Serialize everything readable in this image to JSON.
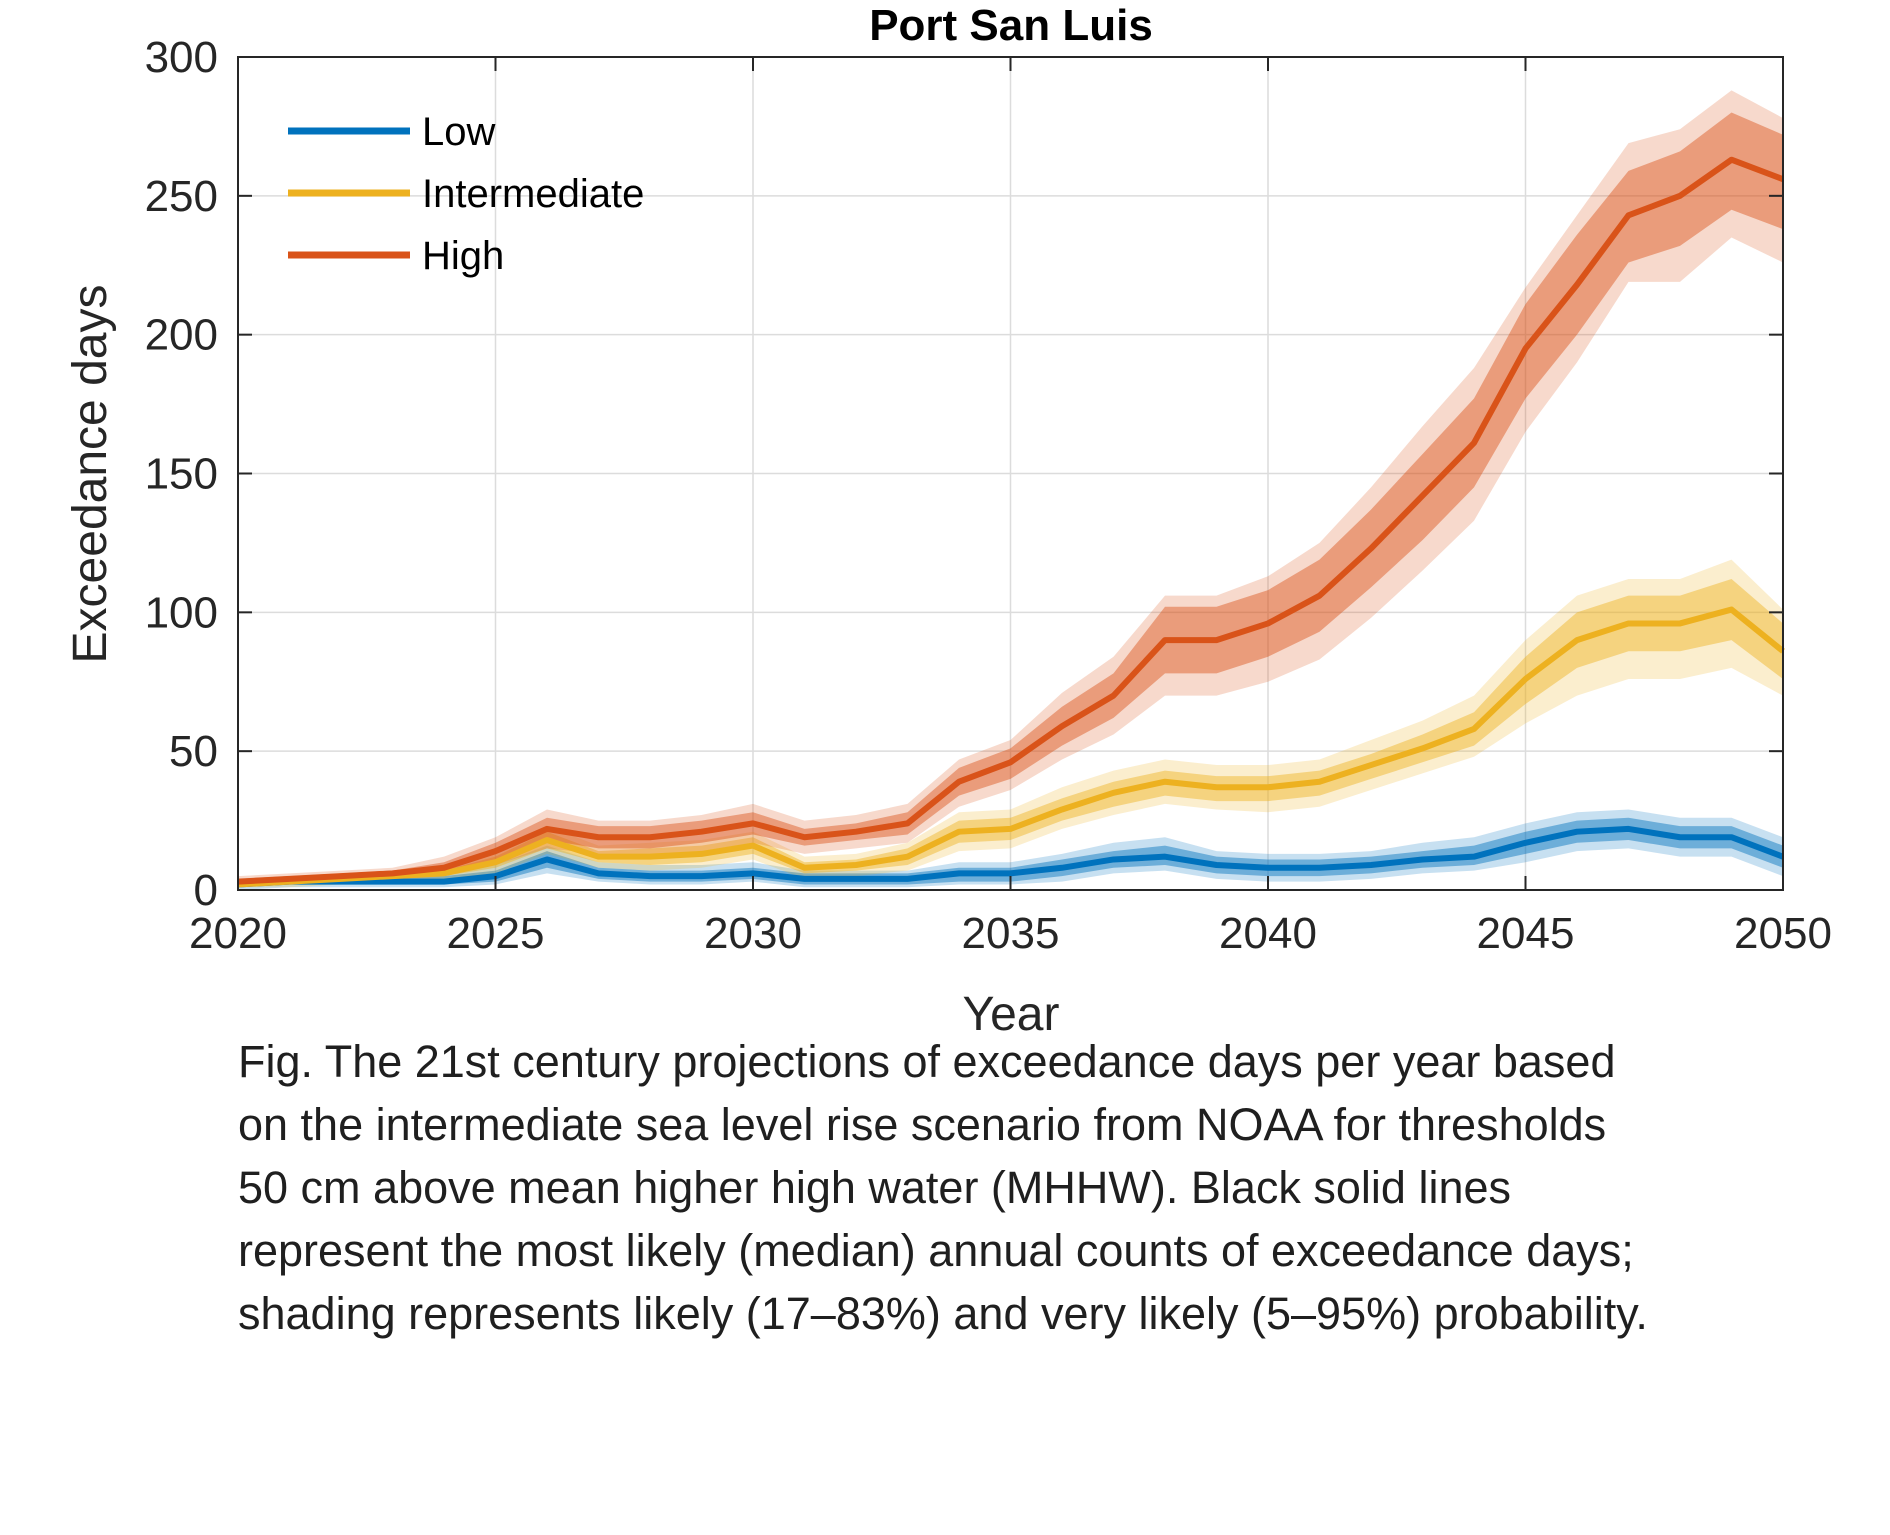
{
  "chart_data": {
    "type": "line",
    "title": "Port San Luis",
    "xlabel": "Year",
    "ylabel": "Exceedance days",
    "xlim": [
      2020,
      2050
    ],
    "ylim": [
      0,
      300
    ],
    "xticks": [
      2020,
      2025,
      2030,
      2035,
      2040,
      2045,
      2050
    ],
    "yticks": [
      0,
      50,
      100,
      150,
      200,
      250,
      300
    ],
    "grid": true,
    "legend_position": "top-left",
    "x": [
      2020,
      2021,
      2022,
      2023,
      2024,
      2025,
      2026,
      2027,
      2028,
      2029,
      2030,
      2031,
      2032,
      2033,
      2034,
      2035,
      2036,
      2037,
      2038,
      2039,
      2040,
      2041,
      2042,
      2043,
      2044,
      2045,
      2046,
      2047,
      2048,
      2049,
      2050
    ],
    "series": [
      {
        "name": "Low",
        "color": "#0072BD",
        "median": [
          2,
          3,
          3,
          3,
          3,
          5,
          11,
          6,
          5,
          5,
          6,
          4,
          4,
          4,
          6,
          6,
          8,
          11,
          12,
          9,
          8,
          8,
          9,
          11,
          12,
          17,
          21,
          22,
          19,
          19,
          12
        ],
        "likely_low": [
          1,
          2,
          2,
          2,
          2,
          3,
          8,
          4,
          3,
          3,
          4,
          2,
          2,
          2,
          3,
          3,
          5,
          8,
          9,
          6,
          5,
          5,
          6,
          8,
          9,
          13,
          17,
          18,
          15,
          15,
          8
        ],
        "likely_high": [
          3,
          4,
          4,
          4,
          5,
          7,
          14,
          8,
          7,
          7,
          8,
          6,
          6,
          6,
          8,
          8,
          11,
          14,
          16,
          12,
          11,
          11,
          12,
          14,
          16,
          21,
          25,
          26,
          23,
          23,
          16
        ],
        "very_likely_low": [
          0,
          1,
          1,
          1,
          1,
          2,
          6,
          3,
          2,
          2,
          3,
          1,
          1,
          1,
          2,
          2,
          3,
          6,
          7,
          4,
          3,
          3,
          4,
          6,
          7,
          10,
          14,
          15,
          12,
          12,
          5
        ],
        "very_likely_high": [
          4,
          5,
          5,
          5,
          6,
          9,
          16,
          10,
          9,
          9,
          10,
          7,
          7,
          7,
          10,
          10,
          13,
          17,
          19,
          14,
          13,
          13,
          14,
          17,
          19,
          24,
          28,
          29,
          26,
          26,
          19
        ]
      },
      {
        "name": "Intermediate",
        "color": "#EDB120",
        "median": [
          2,
          3,
          4,
          5,
          6,
          10,
          18,
          12,
          12,
          13,
          16,
          8,
          9,
          12,
          21,
          22,
          29,
          35,
          39,
          37,
          37,
          39,
          45,
          51,
          58,
          76,
          90,
          96,
          96,
          101,
          86
        ],
        "likely_low": [
          1,
          2,
          3,
          4,
          5,
          8,
          15,
          10,
          9,
          10,
          13,
          6,
          7,
          9,
          17,
          18,
          25,
          30,
          34,
          32,
          32,
          34,
          40,
          46,
          52,
          67,
          80,
          86,
          86,
          90,
          76
        ],
        "likely_high": [
          3,
          4,
          5,
          6,
          7,
          12,
          21,
          14,
          15,
          16,
          19,
          10,
          11,
          15,
          25,
          26,
          33,
          39,
          43,
          41,
          41,
          43,
          49,
          56,
          64,
          84,
          100,
          106,
          106,
          112,
          96
        ],
        "very_likely_low": [
          1,
          1,
          2,
          3,
          4,
          6,
          13,
          8,
          7,
          8,
          11,
          4,
          5,
          7,
          14,
          15,
          22,
          27,
          31,
          29,
          28,
          30,
          36,
          42,
          48,
          60,
          70,
          76,
          76,
          80,
          70
        ],
        "very_likely_high": [
          4,
          5,
          6,
          7,
          8,
          14,
          23,
          16,
          17,
          18,
          21,
          12,
          13,
          17,
          28,
          29,
          37,
          43,
          47,
          45,
          45,
          47,
          54,
          61,
          70,
          90,
          106,
          112,
          112,
          119,
          101
        ]
      },
      {
        "name": "High",
        "color": "#D95319",
        "median": [
          3,
          4,
          5,
          6,
          8,
          14,
          22,
          19,
          19,
          21,
          24,
          19,
          21,
          24,
          39,
          46,
          59,
          70,
          90,
          90,
          96,
          106,
          123,
          142,
          161,
          195,
          218,
          243,
          250,
          263,
          256
        ],
        "likely_low": [
          2,
          3,
          4,
          5,
          6,
          11,
          18,
          15,
          15,
          17,
          20,
          16,
          18,
          20,
          34,
          40,
          52,
          62,
          78,
          78,
          84,
          93,
          109,
          126,
          145,
          177,
          200,
          226,
          232,
          245,
          238
        ],
        "likely_high": [
          4,
          5,
          6,
          7,
          10,
          17,
          26,
          23,
          23,
          25,
          28,
          22,
          24,
          28,
          44,
          51,
          66,
          78,
          102,
          102,
          108,
          119,
          137,
          157,
          177,
          211,
          236,
          259,
          266,
          280,
          272
        ],
        "very_likely_low": [
          1,
          2,
          3,
          4,
          5,
          9,
          15,
          13,
          13,
          14,
          17,
          13,
          15,
          17,
          30,
          36,
          47,
          56,
          70,
          70,
          75,
          83,
          98,
          115,
          133,
          165,
          190,
          219,
          219,
          235,
          226
        ],
        "very_likely_high": [
          5,
          6,
          7,
          8,
          12,
          19,
          29,
          25,
          25,
          27,
          31,
          25,
          27,
          31,
          47,
          54,
          71,
          84,
          106,
          106,
          113,
          125,
          145,
          167,
          188,
          217,
          243,
          269,
          274,
          288,
          278
        ]
      }
    ]
  },
  "caption": {
    "lines": [
      "Fig. The 21st century projections of exceedance days per year based",
      "on the intermediate sea level rise scenario from NOAA for thresholds",
      "50 cm above mean higher high water (MHHW). Black solid lines",
      "represent the most likely (median) annual counts of exceedance days;",
      "shading represents likely (17‒83%) and very likely (5‒95%) probability."
    ]
  }
}
